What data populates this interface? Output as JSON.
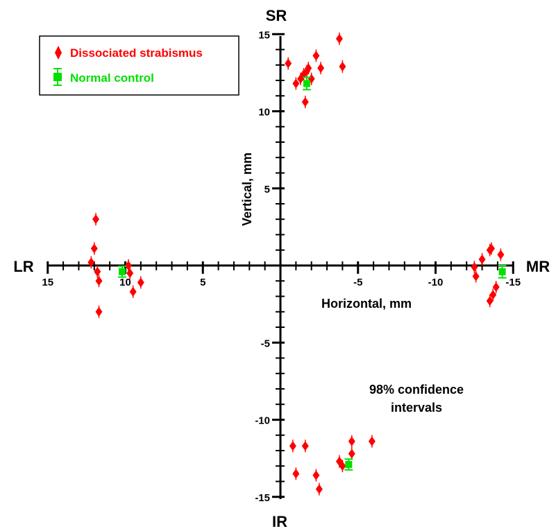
{
  "chart_data": {
    "type": "scatter",
    "title": "",
    "xlabel": "Horizontal, mm",
    "ylabel": "Vertical, mm",
    "xlim": [
      15,
      -15
    ],
    "ylim": [
      -15,
      15
    ],
    "x_ticks": [
      15,
      10,
      5,
      -5,
      -10,
      -15
    ],
    "y_ticks": [
      15,
      10,
      5,
      -5,
      -10,
      -15
    ],
    "x_tick_labels": [
      "15",
      "10",
      "5",
      "-5",
      "-10",
      "-15"
    ],
    "y_tick_labels": [
      "15",
      "10",
      "5",
      "-5",
      "-10",
      "-15"
    ],
    "x_reversed": true,
    "grid": false,
    "legend_position": "top-left",
    "pole_labels": {
      "top": "SR",
      "bottom": "IR",
      "left": "LR",
      "right": "MR"
    },
    "annotation": [
      "98% confidence",
      "intervals"
    ],
    "series": [
      {
        "name": "Dissociated strabismus",
        "color": "#ff0000",
        "marker": "diamond",
        "points": [
          [
            -0.5,
            13.1
          ],
          [
            -1.0,
            11.8
          ],
          [
            -1.3,
            12.1
          ],
          [
            -1.5,
            12.4
          ],
          [
            -1.7,
            12.6
          ],
          [
            -1.8,
            12.8
          ],
          [
            -1.6,
            10.6
          ],
          [
            -2.0,
            12.1
          ],
          [
            -2.3,
            13.6
          ],
          [
            -2.6,
            12.8
          ],
          [
            -3.8,
            14.7
          ],
          [
            -4.0,
            12.9
          ],
          [
            12.2,
            0.2
          ],
          [
            12.0,
            1.1
          ],
          [
            11.9,
            3.0
          ],
          [
            11.8,
            -0.4
          ],
          [
            11.7,
            -1.0
          ],
          [
            11.7,
            -3.0
          ],
          [
            9.8,
            0.0
          ],
          [
            9.7,
            -0.5
          ],
          [
            9.5,
            -1.7
          ],
          [
            9.0,
            -1.1
          ],
          [
            -12.5,
            -0.1
          ],
          [
            -12.6,
            -0.7
          ],
          [
            -13.0,
            0.4
          ],
          [
            -13.5,
            1.0
          ],
          [
            -13.6,
            1.1
          ],
          [
            -14.2,
            0.7
          ],
          [
            -13.9,
            -1.4
          ],
          [
            -13.7,
            -1.9
          ],
          [
            -13.5,
            -2.3
          ],
          [
            -0.8,
            -11.7
          ],
          [
            -1.6,
            -11.7
          ],
          [
            -1.0,
            -13.5
          ],
          [
            -2.3,
            -13.6
          ],
          [
            -2.5,
            -14.5
          ],
          [
            -3.8,
            -12.7
          ],
          [
            -4.0,
            -13.0
          ],
          [
            -4.6,
            -11.4
          ],
          [
            -4.6,
            -12.2
          ],
          [
            -5.9,
            -11.4
          ]
        ]
      },
      {
        "name": "Normal control",
        "color": "#00e000",
        "marker": "square",
        "points": [
          {
            "x": -1.7,
            "y": 11.8,
            "err": 0.4
          },
          {
            "x": 10.2,
            "y": -0.4,
            "err": 0.35
          },
          {
            "x": -14.3,
            "y": -0.4,
            "err": 0.4
          },
          {
            "x": -4.4,
            "y": -12.9,
            "err": 0.35
          }
        ]
      }
    ]
  }
}
